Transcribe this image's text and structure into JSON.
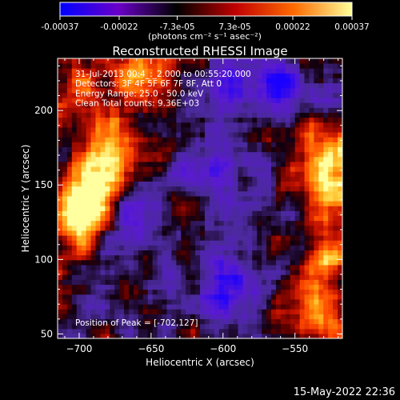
{
  "chart_data": {
    "type": "heatmap",
    "title": "Reconstructed RHESSI Image",
    "xlabel": "Heliocentric X (arcsec)",
    "ylabel": "Heliocentric Y (arcsec)",
    "xlim": [
      -715,
      -517
    ],
    "ylim": [
      47,
      235
    ],
    "x_ticks": [
      -700,
      -650,
      -600,
      -550
    ],
    "y_ticks": [
      50,
      100,
      150,
      200
    ],
    "colorbar": {
      "ticks": [
        "-0.00037",
        "-0.00022",
        "-7.3e-05",
        "7.3e-05",
        "0.00022",
        "0.00037"
      ],
      "tick_values": [
        -0.00037,
        -0.00022,
        -7.3e-05,
        7.3e-05,
        0.00022,
        0.00037
      ],
      "unit_label": "(photons cm⁻² s⁻¹ asec⁻²)",
      "colors": [
        "#0000ff",
        "#6a00c8",
        "#000000",
        "#c00000",
        "#ff6a00",
        "#ffff9a"
      ]
    },
    "info_lines": [
      "31-Jul-2013 00:4_:_2.000 to 00:55:20.000",
      "Detectors: 3F 4F 5F 6F 7F 8F, Att 0",
      "Energy Range: 25.0 - 50.0 keV",
      "Clean     Total counts: 9.36E+03"
    ],
    "peak_label": "Position of Peak = [-702,127]",
    "peak": [
      -702,
      127
    ],
    "hot_regions": [
      {
        "x": -702,
        "y": 127,
        "level": 1.0
      },
      {
        "x": -690,
        "y": 150,
        "level": 0.85
      },
      {
        "x": -680,
        "y": 175,
        "level": 0.7
      },
      {
        "x": -660,
        "y": 225,
        "level": 0.95
      },
      {
        "x": -700,
        "y": 215,
        "level": 0.6
      },
      {
        "x": -530,
        "y": 165,
        "level": 0.85
      },
      {
        "x": -530,
        "y": 95,
        "level": 0.8
      },
      {
        "x": -535,
        "y": 60,
        "level": 0.7
      },
      {
        "x": -525,
        "y": 135,
        "level": 0.65
      }
    ],
    "cold_regions": [
      {
        "x": -595,
        "y": 215,
        "level": -0.75
      },
      {
        "x": -560,
        "y": 215,
        "level": -0.6
      },
      {
        "x": -600,
        "y": 80,
        "level": -0.7
      },
      {
        "x": -610,
        "y": 165,
        "level": -0.45
      },
      {
        "x": -660,
        "y": 125,
        "level": -0.4
      }
    ]
  },
  "footer": {
    "timestamp": "15-May-2022 22:36"
  }
}
